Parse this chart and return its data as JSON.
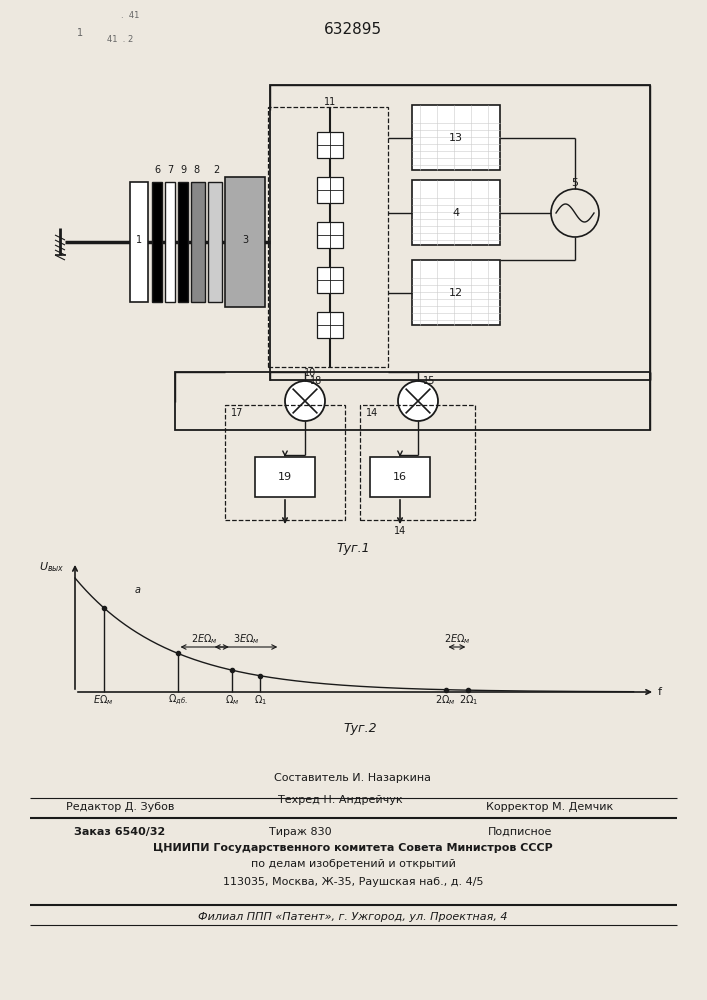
{
  "patent_number": "632895",
  "fig1_caption": "Τуг.1",
  "fig2_caption": "Τуг.2",
  "bg_color": "#ede8df",
  "line_color": "#1a1a1a",
  "footer_line1": "Составитель И. Назаркина",
  "footer_line2a": "Редактор Д. Зубов",
  "footer_line2b": "Техред Н. Андрейчук",
  "footer_line2c": "Корректор М. Демчик",
  "footer_line3a": "Заказ 6540/32",
  "footer_line3b": "Тираж 830",
  "footer_line3c": "Подписное",
  "footer_line4": "ЦНИИПИ Государственного комитета Совета Министров СССР",
  "footer_line5": "по делам изобретений и открытий",
  "footer_line6": "113035, Москва, Ж-35, Раушская наб., д. 4/5",
  "footer_line7": "Филиал ППП «Патент», г. Ужгород, ул. Проектная, 4"
}
